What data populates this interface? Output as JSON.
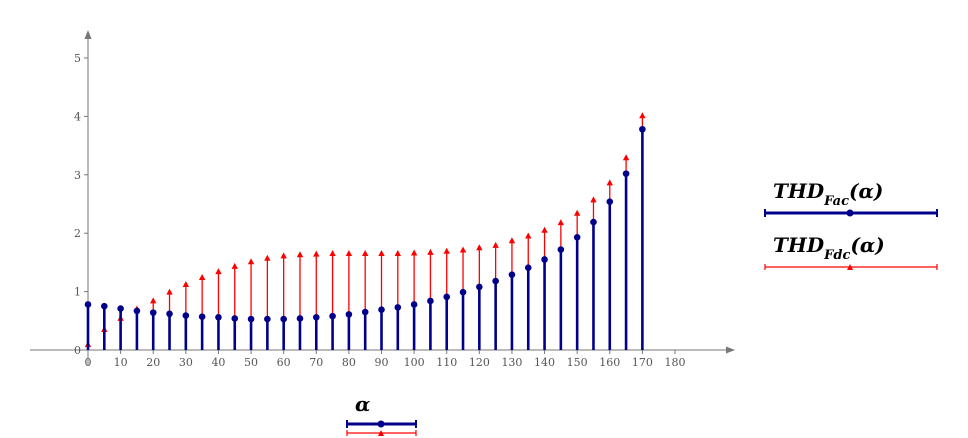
{
  "chart_data": {
    "type": "stem",
    "title": "",
    "xlabel": "α",
    "ylabel": "",
    "xlim": [
      0,
      180
    ],
    "ylim": [
      0,
      5
    ],
    "x_ticks": [
      0,
      10,
      20,
      30,
      40,
      50,
      60,
      70,
      80,
      90,
      100,
      110,
      120,
      130,
      140,
      150,
      160,
      170,
      180
    ],
    "y_ticks": [
      0,
      1,
      2,
      3,
      4,
      5
    ],
    "x": [
      0,
      5,
      10,
      15,
      20,
      25,
      30,
      35,
      40,
      45,
      50,
      55,
      60,
      65,
      70,
      75,
      80,
      85,
      90,
      95,
      100,
      105,
      110,
      115,
      120,
      125,
      130,
      135,
      140,
      145,
      150,
      155,
      160,
      165,
      170
    ],
    "series": [
      {
        "legend_base": "THD",
        "legend_sub": "Fac",
        "legend_arg": "(α)",
        "color": "#00008b",
        "marker": "circle",
        "values": [
          0.78,
          0.75,
          0.71,
          0.67,
          0.64,
          0.62,
          0.59,
          0.57,
          0.56,
          0.54,
          0.53,
          0.53,
          0.53,
          0.54,
          0.56,
          0.58,
          0.61,
          0.65,
          0.69,
          0.73,
          0.78,
          0.84,
          0.91,
          0.99,
          1.08,
          1.18,
          1.29,
          1.41,
          1.55,
          1.72,
          1.93,
          2.19,
          2.54,
          3.02,
          3.78
        ]
      },
      {
        "legend_base": "THD",
        "legend_sub": "Fdc",
        "legend_arg": "(α)",
        "color": "#ff0000",
        "marker": "triangle",
        "values": [
          0.1,
          0.36,
          0.55,
          0.71,
          0.85,
          1.0,
          1.13,
          1.25,
          1.35,
          1.44,
          1.52,
          1.58,
          1.62,
          1.64,
          1.65,
          1.66,
          1.66,
          1.66,
          1.66,
          1.66,
          1.67,
          1.68,
          1.7,
          1.72,
          1.76,
          1.8,
          1.88,
          1.96,
          2.06,
          2.19,
          2.35,
          2.58,
          2.87,
          3.3,
          4.02
        ]
      }
    ],
    "legend_position": "right",
    "grid": false
  }
}
